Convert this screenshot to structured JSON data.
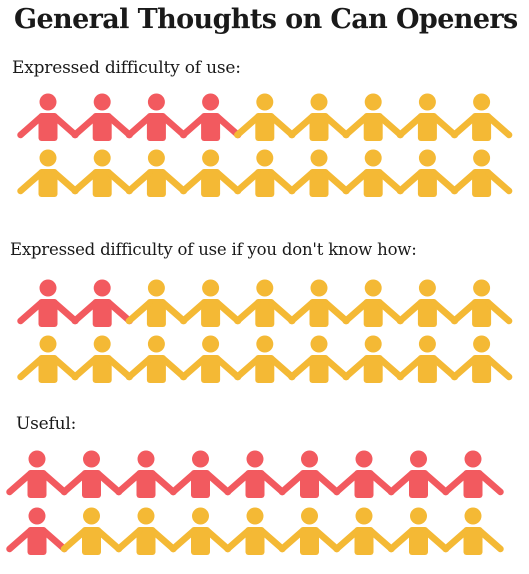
{
  "title": "General Thoughts on Can Openers",
  "colors": {
    "highlight": "#f25a5f",
    "neutral": "#f4b935"
  },
  "chart_data": [
    {
      "type": "pictogram",
      "title": "Expressed difficulty of use:",
      "total": 18,
      "highlighted": 4
    },
    {
      "type": "pictogram",
      "title": "Expressed difficulty of use if you don't know how:",
      "total": 18,
      "highlighted": 2
    },
    {
      "type": "pictogram",
      "title": "Useful:",
      "total": 18,
      "highlighted": 10
    }
  ]
}
